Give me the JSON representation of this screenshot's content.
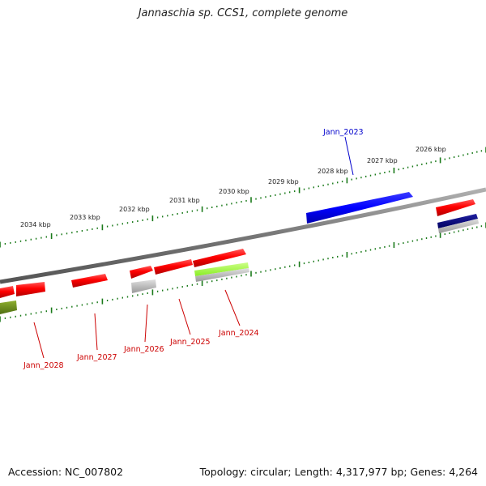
{
  "title": "Jannaschia sp. CCS1, complete genome",
  "footer": {
    "accession": "Accession: NC_007802",
    "topology": "Topology: circular; Length: 4,317,977 bp; Genes: 4,264"
  },
  "colors": {
    "backbone": "#808080",
    "tick": "#1a7a1a",
    "gene_red": "#ff0000",
    "gene_blue": "#0000ff",
    "gene_navy": "#000080",
    "gene_lime": "#99ff33",
    "gene_olive": "#6b8e23",
    "gene_gray": "#b0b0b0",
    "label_red": "#cc0000",
    "label_blue": "#0000cc"
  },
  "kbp_ticks": [
    "2034 kbp",
    "2033 kbp",
    "2032 kbp",
    "2031 kbp",
    "2030 kbp",
    "2029 kbp",
    "2028 kbp",
    "2027 kbp",
    "2026 kbp"
  ],
  "gene_labels": [
    {
      "name": "Jann_2023",
      "color": "blue"
    },
    {
      "name": "Jann_2024",
      "color": "red"
    },
    {
      "name": "Jann_2025",
      "color": "red"
    },
    {
      "name": "Jann_2026",
      "color": "red"
    },
    {
      "name": "Jann_2027",
      "color": "red"
    },
    {
      "name": "Jann_2028",
      "color": "red"
    }
  ]
}
